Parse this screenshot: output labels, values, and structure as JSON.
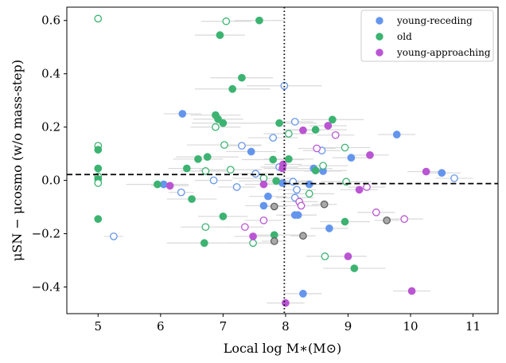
{
  "chart_data": {
    "type": "scatter",
    "xlabel": "Local log M∗(M⊙)",
    "ylabel": "μSN − μcosmo (w/o mass-step)",
    "xlim": [
      4.5,
      11.4
    ],
    "ylim": [
      -0.5,
      0.65
    ],
    "xticks": [
      "5",
      "6",
      "7",
      "8",
      "9",
      "10",
      "11"
    ],
    "yticks": [
      "−0.4",
      "−0.2",
      "0.0",
      "0.2",
      "0.4",
      "0.6"
    ],
    "xtick_values": [
      5,
      6,
      7,
      8,
      9,
      10,
      11
    ],
    "ytick_values": [
      -0.4,
      -0.2,
      0.0,
      0.2,
      0.4,
      0.6
    ],
    "mass_step_x": 7.98,
    "step_low_y": 0.022,
    "step_high_y": -0.012,
    "legend_position": "top-right",
    "colors": {
      "young_receding": "#6495ed",
      "old": "#3cb371",
      "young_approaching": "#ba55d3",
      "gray": "#a9a9a9",
      "errorbar": "#d9d9d9"
    },
    "series": [
      {
        "name": "young-receding",
        "color": "#6495ed",
        "points": [
          [
            6.35,
            0.25,
            1,
            0.3
          ],
          [
            5.25,
            -0.21,
            0,
            0.15
          ],
          [
            6.05,
            -0.015,
            1,
            0.2
          ],
          [
            6.33,
            -0.045,
            0,
            0.2
          ],
          [
            6.85,
            0.0,
            0,
            0.3
          ],
          [
            7.22,
            -0.025,
            0,
            0.3
          ],
          [
            7.3,
            0.13,
            0,
            0.3
          ],
          [
            7.45,
            0.108,
            1,
            0.4
          ],
          [
            7.52,
            0.025,
            0,
            0.3
          ],
          [
            7.65,
            -0.095,
            1,
            0.3
          ],
          [
            7.72,
            -0.06,
            1,
            0.3
          ],
          [
            7.8,
            0.16,
            0,
            0.4
          ],
          [
            7.9,
            0.05,
            0,
            0.3
          ],
          [
            7.95,
            -0.01,
            1,
            0.3
          ],
          [
            7.98,
            0.355,
            0,
            0.6
          ],
          [
            8.15,
            0.22,
            0,
            0.3
          ],
          [
            8.12,
            -0.005,
            0,
            0.3
          ],
          [
            8.18,
            -0.035,
            0,
            0.3
          ],
          [
            8.2,
            -0.13,
            1,
            0.3
          ],
          [
            8.15,
            -0.13,
            1,
            0.3
          ],
          [
            8.15,
            -0.065,
            0,
            0.3
          ],
          [
            8.28,
            -0.425,
            1,
            0.3
          ],
          [
            8.38,
            -0.015,
            1,
            0.3
          ],
          [
            8.45,
            0.045,
            1,
            0.3
          ],
          [
            8.6,
            0.035,
            1,
            0.3
          ],
          [
            8.58,
            0.112,
            0,
            0.3
          ],
          [
            8.7,
            -0.18,
            1,
            0.3
          ],
          [
            9.05,
            0.085,
            1,
            0.3
          ],
          [
            9.78,
            0.172,
            1,
            0.3
          ],
          [
            10.5,
            0.028,
            1,
            0.3
          ],
          [
            10.7,
            0.008,
            0,
            0.3
          ]
        ]
      },
      {
        "name": "old",
        "color": "#3cb371",
        "points": [
          [
            5.0,
            0.607,
            0,
            0
          ],
          [
            5.0,
            0.13,
            0,
            0
          ],
          [
            5.0,
            0.115,
            1,
            0
          ],
          [
            5.0,
            0.045,
            1,
            0
          ],
          [
            5.0,
            0.015,
            0,
            0
          ],
          [
            5.0,
            0.005,
            1,
            0
          ],
          [
            5.0,
            -0.01,
            0,
            0
          ],
          [
            5.0,
            -0.145,
            1,
            0
          ],
          [
            5.95,
            -0.015,
            1,
            0.5
          ],
          [
            6.42,
            0.045,
            1,
            0.3
          ],
          [
            6.5,
            -0.07,
            1,
            0.4
          ],
          [
            6.6,
            0.08,
            1,
            0.4
          ],
          [
            6.7,
            -0.235,
            1,
            0.6
          ],
          [
            6.72,
            -0.175,
            0,
            0.4
          ],
          [
            6.72,
            0.035,
            0,
            0.4
          ],
          [
            6.75,
            0.088,
            1,
            0.5
          ],
          [
            6.88,
            0.2,
            0,
            0.4
          ],
          [
            6.88,
            0.245,
            1,
            0.4
          ],
          [
            6.92,
            0.23,
            1,
            0.4
          ],
          [
            6.95,
            0.545,
            1,
            0.4
          ],
          [
            7.0,
            0.215,
            1,
            0.5
          ],
          [
            7.0,
            -0.135,
            1,
            0.4
          ],
          [
            7.02,
            0.133,
            0,
            0.6
          ],
          [
            7.05,
            0.597,
            0,
            0.4
          ],
          [
            7.12,
            0.04,
            0,
            0.5
          ],
          [
            7.15,
            0.343,
            1,
            0.6
          ],
          [
            7.3,
            0.385,
            1,
            0.5
          ],
          [
            7.48,
            -0.235,
            0,
            0.4
          ],
          [
            7.58,
            0.6,
            1,
            0.4
          ],
          [
            7.65,
            0.008,
            0,
            0.5
          ],
          [
            7.8,
            0.078,
            1,
            0.5
          ],
          [
            7.82,
            -0.205,
            1,
            0.4
          ],
          [
            7.85,
            -0.002,
            1,
            0.6
          ],
          [
            7.9,
            0.215,
            1,
            0.6
          ],
          [
            8.05,
            0.175,
            0,
            0.4
          ],
          [
            8.05,
            0.08,
            1,
            0.4
          ],
          [
            8.38,
            -0.05,
            0,
            0.4
          ],
          [
            8.48,
            0.19,
            1,
            0.5
          ],
          [
            8.48,
            0.037,
            1,
            0.5
          ],
          [
            8.6,
            0.055,
            0,
            0.4
          ],
          [
            8.63,
            -0.285,
            0,
            0.3
          ],
          [
            8.75,
            0.228,
            1,
            0.5
          ],
          [
            8.95,
            0.123,
            0,
            0.4
          ],
          [
            8.95,
            -0.155,
            1,
            0.4
          ],
          [
            8.97,
            -0.005,
            0,
            0.4
          ],
          [
            9.1,
            -0.33,
            1,
            0.5
          ]
        ]
      },
      {
        "name": "young-approaching",
        "color": "#ba55d3",
        "points": [
          [
            6.15,
            -0.02,
            1,
            0.3
          ],
          [
            7.35,
            -0.175,
            0,
            0.3
          ],
          [
            7.48,
            -0.21,
            1,
            0.3
          ],
          [
            7.65,
            -0.015,
            1,
            0.3
          ],
          [
            7.65,
            -0.15,
            0,
            0.3
          ],
          [
            7.95,
            0.045,
            1,
            0.3
          ],
          [
            7.96,
            0.06,
            1,
            0.3
          ],
          [
            8.0,
            -0.46,
            1,
            0.3
          ],
          [
            8.22,
            -0.08,
            0,
            0.3
          ],
          [
            8.25,
            -0.095,
            0,
            0.3
          ],
          [
            8.28,
            0.188,
            1,
            0.3
          ],
          [
            8.5,
            0.12,
            0,
            0.3
          ],
          [
            8.68,
            0.205,
            1,
            0.3
          ],
          [
            8.8,
            0.17,
            0,
            0.3
          ],
          [
            9.0,
            -0.285,
            1,
            0.3
          ],
          [
            9.18,
            -0.035,
            1,
            0.3
          ],
          [
            9.3,
            -0.025,
            0,
            0.3
          ],
          [
            9.35,
            0.095,
            1,
            0.3
          ],
          [
            9.45,
            -0.12,
            0,
            0.3
          ],
          [
            9.9,
            -0.145,
            0,
            0.3
          ],
          [
            10.02,
            -0.415,
            1,
            0.3
          ],
          [
            10.25,
            0.033,
            1,
            0.3
          ]
        ]
      },
      {
        "name": "gray",
        "color": "#a9a9a9",
        "points": [
          [
            7.82,
            -0.098,
            1,
            0.2
          ],
          [
            7.82,
            -0.228,
            1,
            0.2
          ],
          [
            8.28,
            -0.208,
            1,
            0.2
          ],
          [
            8.62,
            -0.09,
            1,
            0.2
          ],
          [
            9.62,
            -0.15,
            1,
            0.2
          ]
        ]
      }
    ],
    "legend": [
      {
        "label": "young-receding",
        "color": "#6495ed"
      },
      {
        "label": "old",
        "color": "#3cb371"
      },
      {
        "label": "young-approaching",
        "color": "#ba55d3"
      }
    ]
  }
}
